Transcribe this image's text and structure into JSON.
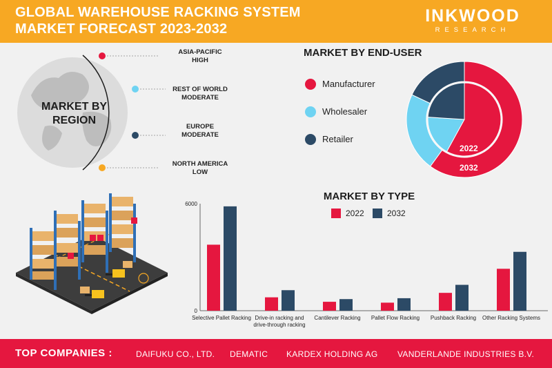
{
  "header": {
    "title_line1": "GLOBAL WAREHOUSE RACKING SYSTEM",
    "title_line2": "MARKET FORECAST 2023-2032",
    "logo_main": "INKWOOD",
    "logo_sub": "RESEARCH"
  },
  "region": {
    "title_line1": "MARKET BY",
    "title_line2": "REGION",
    "items": [
      {
        "name": "ASIA-PACIFIC",
        "level": "HIGH",
        "color": "#e5173f"
      },
      {
        "name": "REST OF WORLD",
        "level": "MODERATE",
        "color": "#6fd3f2"
      },
      {
        "name": "EUROPE",
        "level": "MODERATE",
        "color": "#2c4a66"
      },
      {
        "name": "NORTH AMERICA",
        "level": "LOW",
        "color": "#f7a823"
      }
    ]
  },
  "end_user": {
    "title": "MARKET BY END-USER",
    "items": [
      {
        "label": "Manufacturer",
        "color": "#e5173f"
      },
      {
        "label": "Wholesaler",
        "color": "#6fd3f2"
      },
      {
        "label": "Retailer",
        "color": "#2c4a66"
      }
    ],
    "year_inner": "2022",
    "year_outer": "2032"
  },
  "market_type": {
    "title": "MARKET BY TYPE",
    "legend": [
      {
        "label": "2022",
        "color": "#e5173f"
      },
      {
        "label": "2032",
        "color": "#2c4a66"
      }
    ]
  },
  "footer": {
    "label": "TOP COMPANIES :",
    "companies": [
      "DAIFUKU CO., LTD.",
      "DEMATIC",
      "KARDEX HOLDING AG",
      "VANDERLANDE INDUSTRIES B.V."
    ]
  },
  "chart_data": [
    {
      "type": "pie",
      "title": "MARKET BY END-USER",
      "categories": [
        "Manufacturer",
        "Wholesaler",
        "Retailer"
      ],
      "series": [
        {
          "name": "2022",
          "values": [
            58,
            18,
            24
          ]
        },
        {
          "name": "2032",
          "values": [
            60,
            22,
            18
          ]
        }
      ]
    },
    {
      "type": "bar",
      "title": "MARKET BY TYPE",
      "categories": [
        "Selective Pallet Racking",
        "Drive-in racking and drive-through racking",
        "Cantilever Racking",
        "Pallet Flow Racking",
        "Pushback Racking",
        "Other Racking Systems"
      ],
      "series": [
        {
          "name": "2022",
          "values": [
            3700,
            750,
            500,
            450,
            1000,
            2350
          ]
        },
        {
          "name": "2032",
          "values": [
            5850,
            1150,
            650,
            700,
            1450,
            3300
          ]
        }
      ],
      "y_ticks": [
        "0",
        "6000"
      ],
      "ylim": [
        0,
        6000
      ],
      "colors": [
        "#e5173f",
        "#2c4a66"
      ]
    }
  ]
}
